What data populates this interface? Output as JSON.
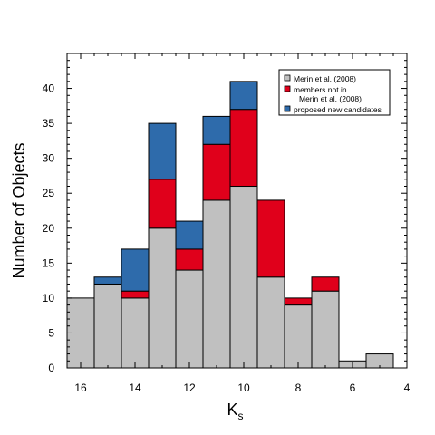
{
  "chart_data": {
    "type": "bar",
    "stacked": true,
    "x_axis_reversed": true,
    "bin_edges": [
      16.5,
      15.5,
      14.5,
      13.5,
      12.5,
      11.5,
      10.5,
      9.5,
      8.5,
      7.5,
      6.5,
      5.5,
      4.5
    ],
    "xlabel_main": "K",
    "xlabel_sub": "s",
    "ylabel": "Number of Objects",
    "xlim": [
      16.5,
      4.0
    ],
    "ylim": [
      0,
      45
    ],
    "x_ticks": [
      16,
      14,
      12,
      10,
      8,
      6,
      4
    ],
    "y_ticks": [
      0,
      5,
      10,
      15,
      20,
      25,
      30,
      35,
      40
    ],
    "grid": false,
    "legend_position": "top-right",
    "series": [
      {
        "name": "Merin et al. (2008)",
        "color": "#c0c0c0",
        "values": [
          10,
          12,
          10,
          20,
          14,
          24,
          26,
          13,
          9,
          11,
          1,
          2
        ]
      },
      {
        "name": "members not in Merin et al. (2008)",
        "color": "#e0001b",
        "values": [
          0,
          0,
          1,
          7,
          3,
          8,
          11,
          11,
          1,
          2,
          0,
          0
        ]
      },
      {
        "name": "proposed new candidates",
        "color": "#2e6bab",
        "values": [
          0,
          1,
          6,
          8,
          4,
          4,
          4,
          0,
          0,
          0,
          0,
          0
        ]
      }
    ],
    "legend": {
      "entries": [
        {
          "lines": [
            "Merin et al. (2008)"
          ],
          "color": "#c0c0c0"
        },
        {
          "lines": [
            "members not in",
            "Merin et al. (2008)"
          ],
          "color": "#e0001b"
        },
        {
          "lines": [
            "proposed new candidates"
          ],
          "color": "#2e6bab"
        }
      ]
    }
  }
}
